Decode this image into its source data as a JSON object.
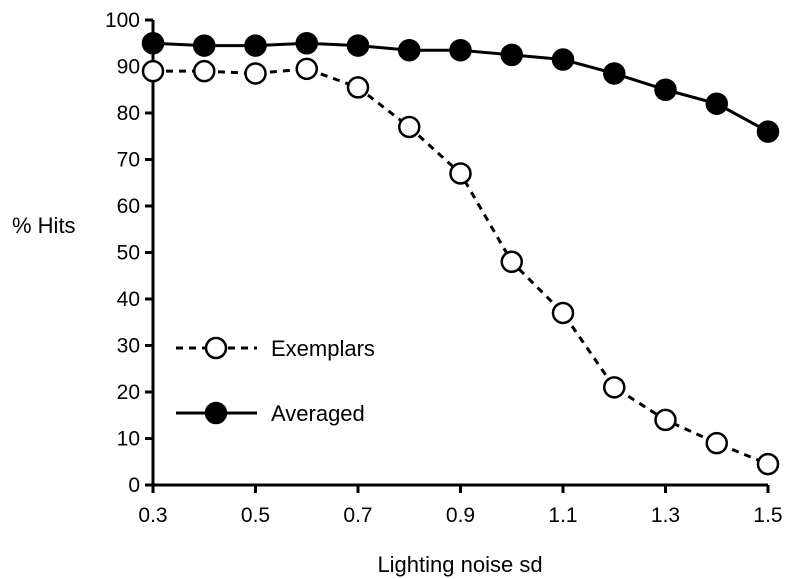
{
  "chart_data": {
    "type": "line",
    "xlabel": "Lighting noise sd",
    "ylabel": "% Hits",
    "xlim": [
      0.3,
      1.5
    ],
    "ylim": [
      0,
      100
    ],
    "x_ticks": [
      "0.3",
      "0.5",
      "0.7",
      "0.9",
      "1.1",
      "1.3",
      "1.5"
    ],
    "y_ticks": [
      "0",
      "10",
      "20",
      "30",
      "40",
      "50",
      "60",
      "70",
      "80",
      "90",
      "100"
    ],
    "x": [
      0.3,
      0.4,
      0.5,
      0.6,
      0.7,
      0.8,
      0.9,
      1.0,
      1.1,
      1.2,
      1.3,
      1.4,
      1.5
    ],
    "series": [
      {
        "name": "Exemplars",
        "marker": "open-circle",
        "line": "dashed",
        "values": [
          89,
          89,
          88.5,
          89.5,
          85.5,
          77,
          67,
          48,
          37,
          21,
          14,
          9,
          4.5
        ]
      },
      {
        "name": "Averaged",
        "marker": "filled-circle",
        "line": "solid",
        "values": [
          95,
          94.5,
          94.5,
          95,
          94.5,
          93.5,
          93.5,
          92.5,
          91.5,
          88.5,
          85,
          82,
          76
        ]
      }
    ],
    "legend_position": "lower-left",
    "grid": false
  }
}
